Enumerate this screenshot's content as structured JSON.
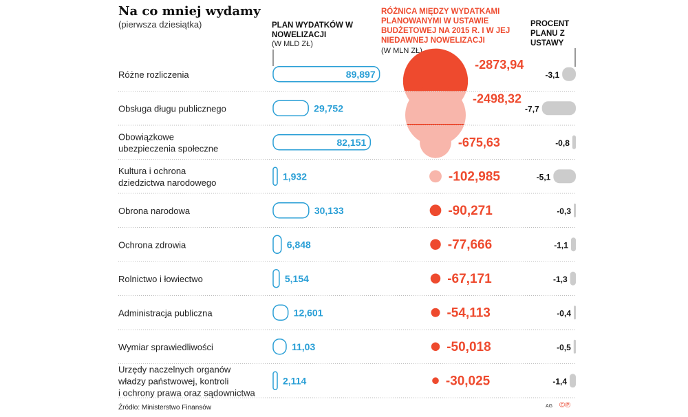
{
  "title": "Na co mniej wydamy",
  "subtitle": "(pierwsza dziesiątka)",
  "source": "Źródło: Ministerstwo Finansów",
  "credit": "AG",
  "copyright_marks": "©℗",
  "colors": {
    "plan": "#2a9fd6",
    "diff": "#ee4a2e",
    "pct": "#cccccc"
  },
  "chart_data": {
    "type": "table",
    "columns": {
      "plan": {
        "title": "PLAN WYDATKÓW W NOWELIZACJI",
        "unit": "(W MLD ZŁ)"
      },
      "diff": {
        "title": "RÓŻNICA MIĘDZY WYDATKAMI PLANOWANYMI W USTAWIE BUDŻETOWEJ NA 2015 R. I W JEJ NIEDAWNEJ NOWELIZACJI",
        "unit": "(W MLN ZŁ)"
      },
      "pct": {
        "title": "PROCENT PLANU Z USTAWY"
      }
    },
    "rows": [
      {
        "label": [
          "Różne rozliczenia"
        ],
        "plan": "89,897",
        "diff": "-2873,94",
        "pct": "-3,1"
      },
      {
        "label": [
          "Obsługa długu publicznego"
        ],
        "plan": "29,752",
        "diff": "-2498,32",
        "pct": "-7,7"
      },
      {
        "label": [
          "Obowiązkowe",
          "ubezpieczenia społeczne"
        ],
        "plan": "82,151",
        "diff": "-675,63",
        "pct": "-0,8"
      },
      {
        "label": [
          "Kultura i ochrona",
          "dziedzictwa narodowego"
        ],
        "plan": "1,932",
        "diff": "-102,985",
        "pct": "-5,1"
      },
      {
        "label": [
          "Obrona narodowa"
        ],
        "plan": "30,133",
        "diff": "-90,271",
        "pct": "-0,3"
      },
      {
        "label": [
          "Ochrona zdrowia"
        ],
        "plan": "6,848",
        "diff": "-77,666",
        "pct": "-1,1"
      },
      {
        "label": [
          "Rolnictwo i łowiectwo"
        ],
        "plan": "5,154",
        "diff": "-67,171",
        "pct": "-1,3"
      },
      {
        "label": [
          "Administracja publiczna"
        ],
        "plan": "12,601",
        "diff": "-54,113",
        "pct": "-0,4"
      },
      {
        "label": [
          "Wymiar sprawiedliwości"
        ],
        "plan": "11,03",
        "diff": "-50,018",
        "pct": "-0,5"
      },
      {
        "label": [
          "Urzędy naczelnych organów",
          "władzy państwowej, kontroli",
          "i ochrony prawa oraz sądownictwa"
        ],
        "plan": "2,114",
        "diff": "-30,025",
        "pct": "-1,4"
      }
    ]
  }
}
